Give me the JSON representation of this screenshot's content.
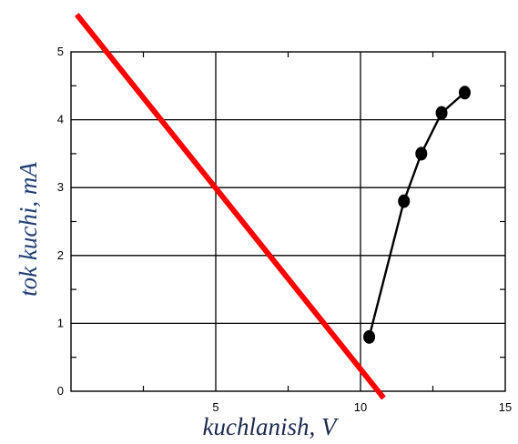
{
  "chart_data": {
    "type": "line",
    "xlabel": "kuchlanish, V",
    "ylabel": "tok kuchi, mA",
    "xlim": [
      0,
      15
    ],
    "ylim": [
      0,
      5
    ],
    "x_ticks": [
      "5",
      "10",
      "15"
    ],
    "y_ticks": [
      "0",
      "1",
      "2",
      "3",
      "4",
      "5"
    ],
    "grid": true,
    "series": [
      {
        "style": "line-markers",
        "color": "#000000",
        "x": [
          10.3,
          11.5,
          12.1,
          12.8,
          13.6
        ],
        "y": [
          0.8,
          2.8,
          3.5,
          4.1,
          4.4
        ]
      },
      {
        "style": "line",
        "color": "#ff0000",
        "x": [
          0.2,
          10.8
        ],
        "y": [
          5.55,
          -0.1
        ]
      }
    ],
    "colors": {
      "xlabel": "#1a2a4d",
      "ylabel": "#1f3e75",
      "grid": "#000000"
    }
  }
}
